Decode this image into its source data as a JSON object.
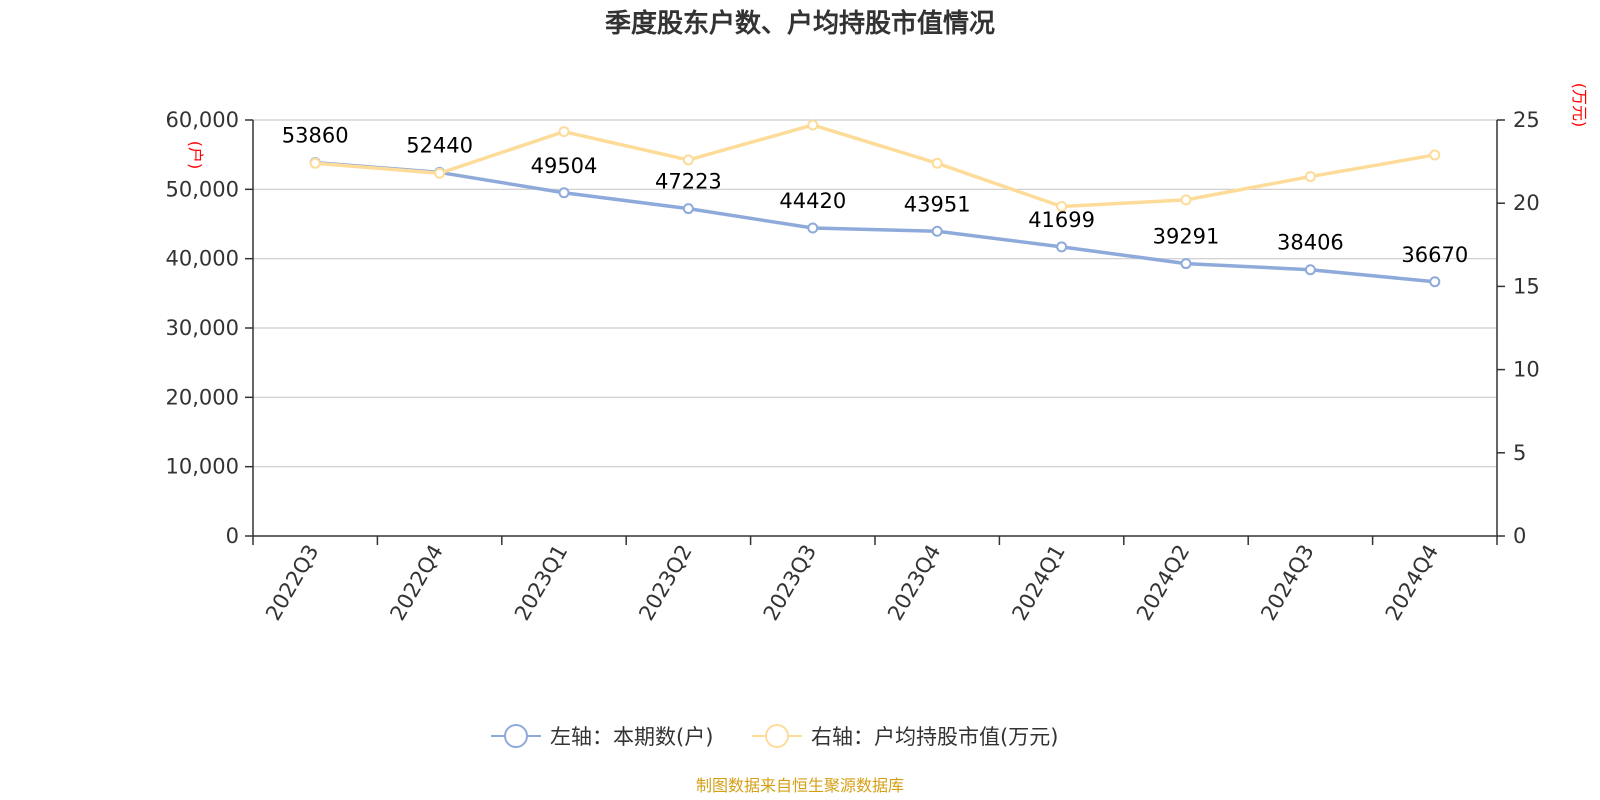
{
  "chart_data": {
    "type": "line",
    "title": "季度股东户数、户均持股市值情况",
    "categories": [
      "2022Q3",
      "2022Q4",
      "2023Q1",
      "2023Q2",
      "2023Q3",
      "2023Q4",
      "2024Q1",
      "2024Q2",
      "2024Q3",
      "2024Q4"
    ],
    "left_axis": {
      "unit_label": "(户)",
      "range": [
        0,
        60000
      ],
      "ticks": [
        "0",
        "10,000",
        "20,000",
        "30,000",
        "40,000",
        "50,000",
        "60,000"
      ],
      "tick_values": [
        0,
        10000,
        20000,
        30000,
        40000,
        50000,
        60000
      ]
    },
    "right_axis": {
      "unit_label": "(万元)",
      "range": [
        0,
        25
      ],
      "ticks": [
        "0",
        "5",
        "10",
        "15",
        "20",
        "25"
      ],
      "tick_values": [
        0,
        5,
        10,
        15,
        20,
        25
      ]
    },
    "grid": true,
    "legend_position": "bottom",
    "series": [
      {
        "name": "左轴：本期数(户)",
        "axis": "left",
        "color": "#8eaadb",
        "values": [
          53860,
          52440,
          49504,
          47223,
          44420,
          43951,
          41699,
          39291,
          38406,
          36670
        ],
        "labels": [
          "53860",
          "52440",
          "49504",
          "47223",
          "44420",
          "43951",
          "41699",
          "39291",
          "38406",
          "36670"
        ]
      },
      {
        "name": "右轴：户均持股市值(万元)",
        "axis": "right",
        "color": "#fddc9a",
        "values": [
          22.4,
          21.8,
          24.3,
          22.6,
          24.7,
          22.4,
          19.8,
          20.2,
          21.6,
          22.9
        ]
      }
    ],
    "source": "制图数据来自恒生聚源数据库"
  }
}
